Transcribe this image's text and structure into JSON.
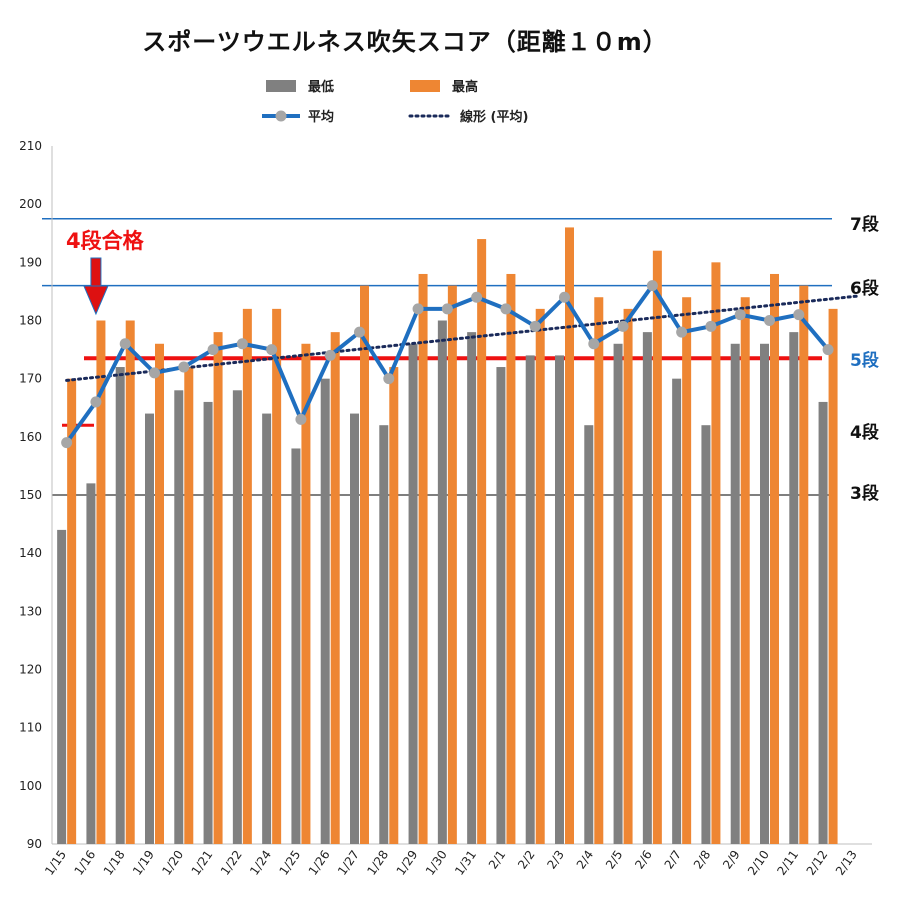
{
  "chart_data": {
    "type": "bar",
    "title": "スポーツウエルネス吹矢スコア（距離１０m）",
    "ylim": [
      90,
      210
    ],
    "yticks": [
      90,
      100,
      110,
      120,
      130,
      140,
      150,
      160,
      170,
      180,
      190,
      200,
      210
    ],
    "categories": [
      "1/15",
      "1/16",
      "1/18",
      "1/19",
      "1/20",
      "1/21",
      "1/22",
      "1/24",
      "1/25",
      "1/26",
      "1/27",
      "1/28",
      "1/29",
      "1/30",
      "1/31",
      "2/1",
      "2/2",
      "2/3",
      "2/4",
      "2/5",
      "2/6",
      "2/7",
      "2/8",
      "2/9",
      "2/10",
      "2/11",
      "2/12",
      "2/13"
    ],
    "series": [
      {
        "name": "最低",
        "type": "bar",
        "color": "#808080",
        "values": [
          144,
          152,
          172,
          164,
          168,
          166,
          168,
          164,
          158,
          170,
          164,
          162,
          176,
          180,
          178,
          172,
          174,
          174,
          162,
          176,
          178,
          170,
          162,
          176,
          176,
          178,
          166,
          null
        ]
      },
      {
        "name": "最高",
        "type": "bar",
        "color": "#ee8633",
        "values": [
          170,
          180,
          180,
          176,
          172,
          178,
          182,
          182,
          176,
          178,
          186,
          172,
          188,
          186,
          194,
          188,
          182,
          196,
          184,
          182,
          192,
          184,
          190,
          184,
          188,
          186,
          182,
          null
        ]
      },
      {
        "name": "平均",
        "type": "line",
        "color": "#1f6fc0",
        "marker_color": "#a6a6a6",
        "values": [
          159,
          166,
          176,
          171,
          172,
          175,
          176,
          175,
          163,
          174,
          178,
          170,
          182,
          182,
          184,
          182,
          179,
          184,
          176,
          179,
          186,
          178,
          179,
          181,
          180,
          181,
          175,
          null
        ]
      },
      {
        "name": "線形 (平均)",
        "type": "trendline",
        "color": "#1a2a5a",
        "dash": "dotted",
        "start": 169.7,
        "end": 184.2
      }
    ],
    "reference_lines": [
      {
        "label": "7段",
        "value": 197.5,
        "color": "#1f6fc0",
        "label_color": "#111111"
      },
      {
        "label": "6段",
        "value": 186.0,
        "color": "#1f6fc0",
        "label_color": "#111111"
      },
      {
        "label": "5段",
        "value": 173.5,
        "color": "#ee1111",
        "label_color": "#1f6fc0"
      },
      {
        "label": "4段",
        "value": 162.0,
        "color": "#ee1111",
        "label_color": "#111111"
      },
      {
        "label": "3段",
        "value": 150.0,
        "color": "#555555",
        "label_color": "#111111"
      }
    ],
    "annotations": [
      {
        "text": "4段合格",
        "color": "#ee1111",
        "points_to": "1/16"
      }
    ],
    "legend": {
      "position": "top",
      "items": [
        {
          "label": "最低",
          "marker": "bar",
          "color": "#808080"
        },
        {
          "label": "最高",
          "marker": "bar",
          "color": "#ee8633"
        },
        {
          "label": "平均",
          "marker": "line-dot",
          "color": "#1f6fc0"
        },
        {
          "label": "線形 (平均)",
          "marker": "dotted-line",
          "color": "#1a2a5a"
        }
      ]
    },
    "grid": false
  }
}
